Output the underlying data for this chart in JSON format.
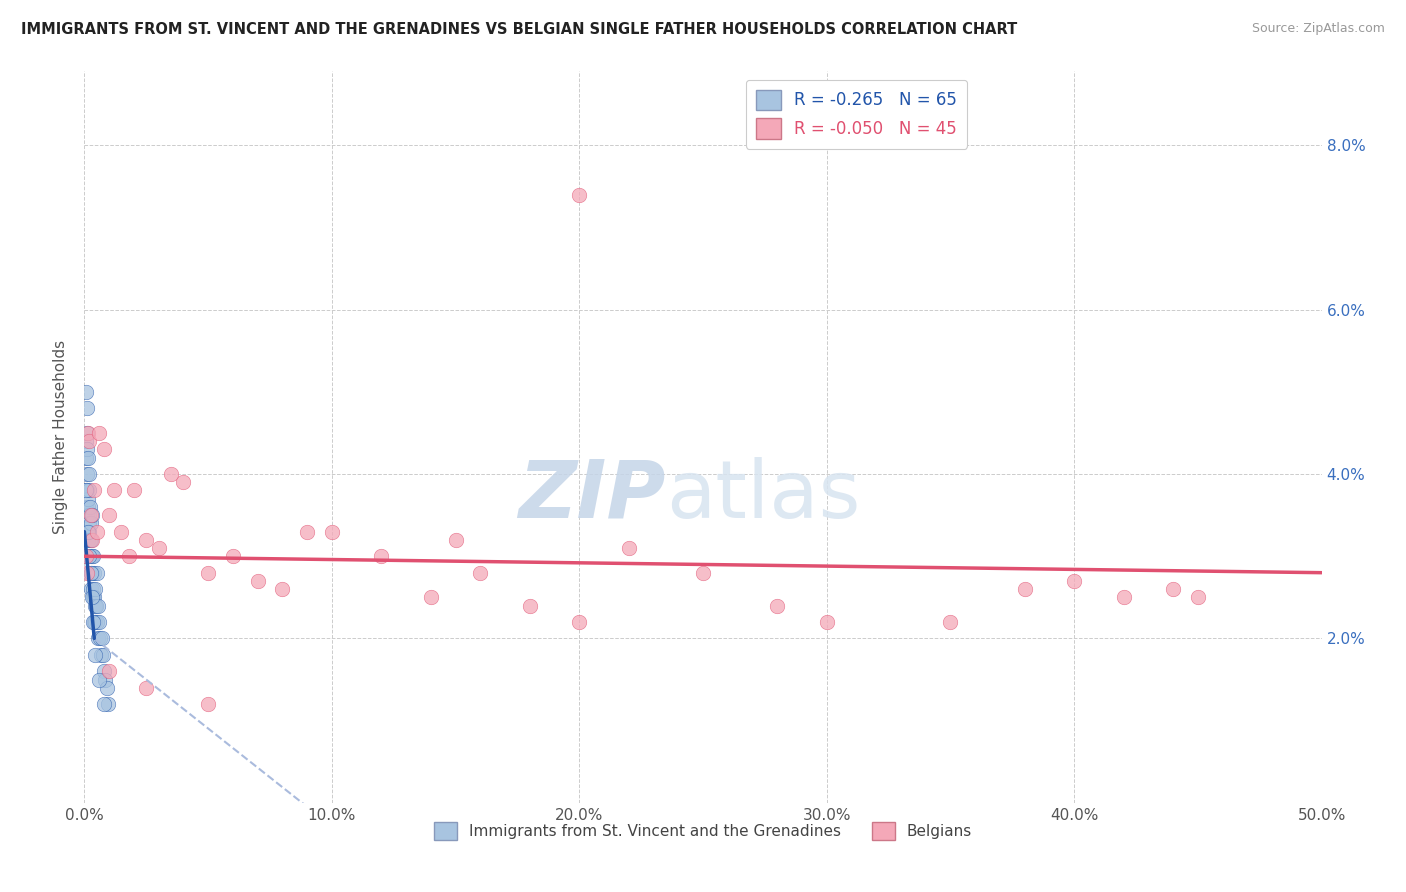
{
  "title": "IMMIGRANTS FROM ST. VINCENT AND THE GRENADINES VS BELGIAN SINGLE FATHER HOUSEHOLDS CORRELATION CHART",
  "source": "Source: ZipAtlas.com",
  "ylabel": "Single Father Households",
  "legend_label_blue": "Immigrants from St. Vincent and the Grenadines",
  "legend_label_pink": "Belgians",
  "r_blue": "-0.265",
  "n_blue": "65",
  "r_pink": "-0.050",
  "n_pink": "45",
  "xlim": [
    0,
    0.5
  ],
  "ylim": [
    0,
    0.089
  ],
  "xticks": [
    0.0,
    0.1,
    0.2,
    0.3,
    0.4,
    0.5
  ],
  "yticks": [
    0.0,
    0.02,
    0.04,
    0.06,
    0.08
  ],
  "ytick_labels_right": [
    "",
    "2.0%",
    "4.0%",
    "6.0%",
    "8.0%"
  ],
  "xtick_labels": [
    "0.0%",
    "10.0%",
    "20.0%",
    "30.0%",
    "40.0%",
    "50.0%"
  ],
  "color_blue": "#a8c4e0",
  "color_pink": "#f4a8b8",
  "trendline_blue": "#2255aa",
  "trendline_pink": "#e05070",
  "trendline_blue_dashed": "#aabbdd",
  "watermark_color": "#ccd8e8",
  "background_color": "#ffffff",
  "blue_x": [
    0.0005,
    0.0005,
    0.0005,
    0.0008,
    0.0008,
    0.001,
    0.001,
    0.001,
    0.001,
    0.001,
    0.0012,
    0.0012,
    0.0013,
    0.0015,
    0.0015,
    0.0015,
    0.0017,
    0.0018,
    0.0018,
    0.002,
    0.002,
    0.002,
    0.0022,
    0.0022,
    0.0025,
    0.0025,
    0.0025,
    0.0028,
    0.0028,
    0.003,
    0.003,
    0.0032,
    0.0033,
    0.0035,
    0.0035,
    0.0038,
    0.004,
    0.004,
    0.0042,
    0.0045,
    0.0045,
    0.0048,
    0.005,
    0.005,
    0.0055,
    0.0055,
    0.006,
    0.0065,
    0.0068,
    0.007,
    0.0075,
    0.008,
    0.0085,
    0.009,
    0.0095,
    0.001,
    0.002,
    0.003,
    0.0008,
    0.0015,
    0.0025,
    0.0035,
    0.0045,
    0.006,
    0.008
  ],
  "blue_y": [
    0.05,
    0.044,
    0.038,
    0.042,
    0.036,
    0.048,
    0.043,
    0.04,
    0.035,
    0.03,
    0.038,
    0.033,
    0.036,
    0.042,
    0.037,
    0.032,
    0.035,
    0.04,
    0.034,
    0.038,
    0.033,
    0.028,
    0.036,
    0.032,
    0.034,
    0.03,
    0.026,
    0.032,
    0.028,
    0.035,
    0.03,
    0.028,
    0.025,
    0.03,
    0.026,
    0.028,
    0.025,
    0.022,
    0.024,
    0.026,
    0.022,
    0.024,
    0.028,
    0.022,
    0.024,
    0.02,
    0.022,
    0.02,
    0.018,
    0.02,
    0.018,
    0.016,
    0.015,
    0.014,
    0.012,
    0.045,
    0.03,
    0.025,
    0.038,
    0.033,
    0.028,
    0.022,
    0.018,
    0.015,
    0.012
  ],
  "pink_x": [
    0.0005,
    0.001,
    0.0015,
    0.002,
    0.0025,
    0.003,
    0.004,
    0.005,
    0.006,
    0.008,
    0.01,
    0.012,
    0.015,
    0.018,
    0.02,
    0.025,
    0.03,
    0.035,
    0.04,
    0.05,
    0.06,
    0.07,
    0.08,
    0.09,
    0.1,
    0.12,
    0.14,
    0.15,
    0.16,
    0.18,
    0.2,
    0.22,
    0.25,
    0.28,
    0.3,
    0.35,
    0.38,
    0.4,
    0.42,
    0.44,
    0.45,
    0.01,
    0.025,
    0.05,
    0.2
  ],
  "pink_y": [
    0.03,
    0.028,
    0.045,
    0.044,
    0.035,
    0.032,
    0.038,
    0.033,
    0.045,
    0.043,
    0.035,
    0.038,
    0.033,
    0.03,
    0.038,
    0.032,
    0.031,
    0.04,
    0.039,
    0.028,
    0.03,
    0.027,
    0.026,
    0.033,
    0.033,
    0.03,
    0.025,
    0.032,
    0.028,
    0.024,
    0.022,
    0.031,
    0.028,
    0.024,
    0.022,
    0.022,
    0.026,
    0.027,
    0.025,
    0.026,
    0.025,
    0.016,
    0.014,
    0.012,
    0.074
  ],
  "pink_trendline_x_start": 0.0,
  "pink_trendline_x_end": 0.5,
  "pink_trendline_y_start": 0.03,
  "pink_trendline_y_end": 0.028,
  "blue_trendline_x_solid_start": 0.0,
  "blue_trendline_x_solid_end": 0.004,
  "blue_trendline_y_solid_start": 0.033,
  "blue_trendline_y_solid_end": 0.02,
  "blue_trendline_x_dashed_end": 0.13,
  "blue_trendline_y_dashed_end": -0.01
}
